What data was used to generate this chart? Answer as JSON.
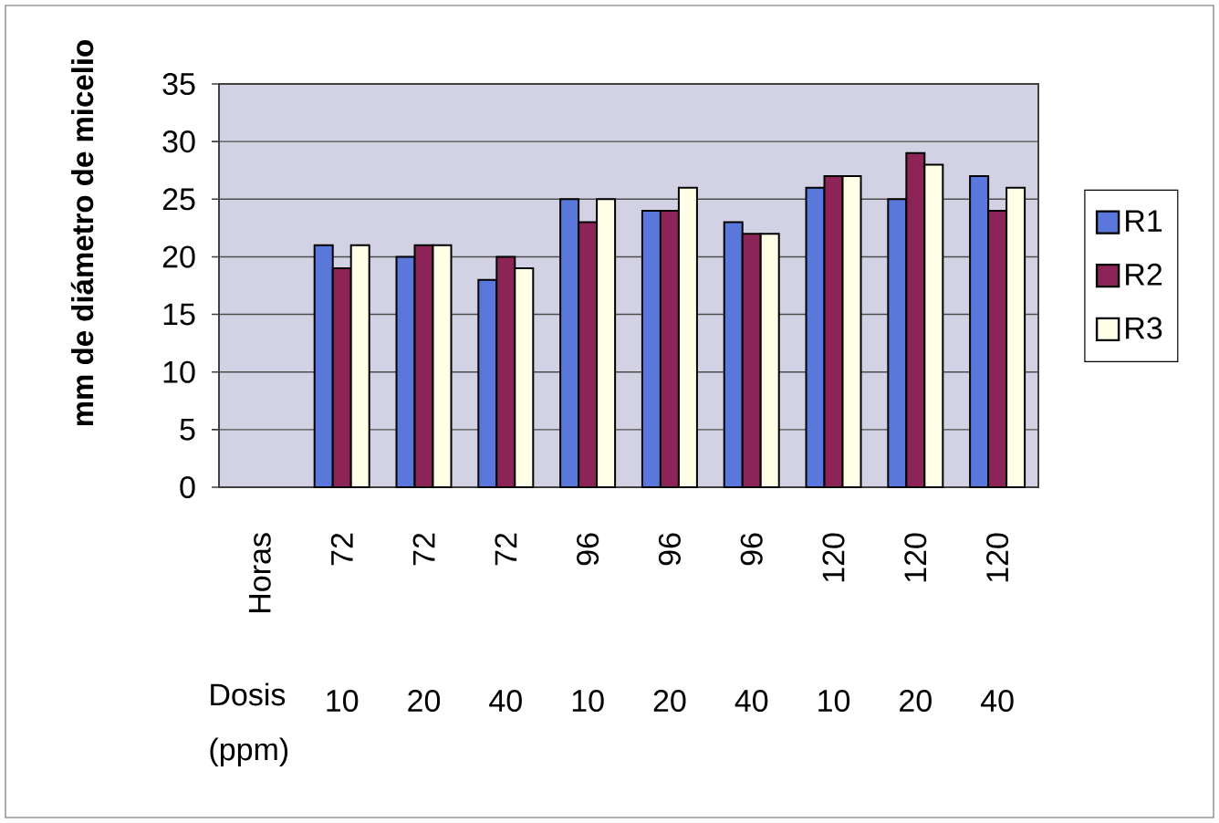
{
  "chart_data": {
    "type": "bar",
    "categories": [
      "Horas",
      "72",
      "72",
      "72",
      "96",
      "96",
      "96",
      "120",
      "120",
      "120"
    ],
    "series": [
      {
        "name": "R1",
        "color": "#5a78dc",
        "values": [
          null,
          21,
          20,
          18,
          25,
          24,
          23,
          26,
          25,
          27
        ]
      },
      {
        "name": "R2",
        "color": "#8c2458",
        "values": [
          null,
          19,
          21,
          20,
          23,
          24,
          22,
          27,
          29,
          24
        ]
      },
      {
        "name": "R3",
        "color": "#ffffe8",
        "values": [
          null,
          21,
          21,
          19,
          25,
          26,
          22,
          27,
          28,
          26
        ]
      }
    ],
    "ylabel": "mm de diámetro de micelio",
    "ylim": [
      0,
      35
    ],
    "yticks": [
      0,
      5,
      10,
      15,
      20,
      25,
      30,
      35
    ],
    "grid": "y",
    "legend": "right",
    "annotations": [
      "Dosis (ppm)",
      "10",
      "20",
      "40",
      "10",
      "20",
      "40",
      "10",
      "20",
      "40"
    ]
  }
}
